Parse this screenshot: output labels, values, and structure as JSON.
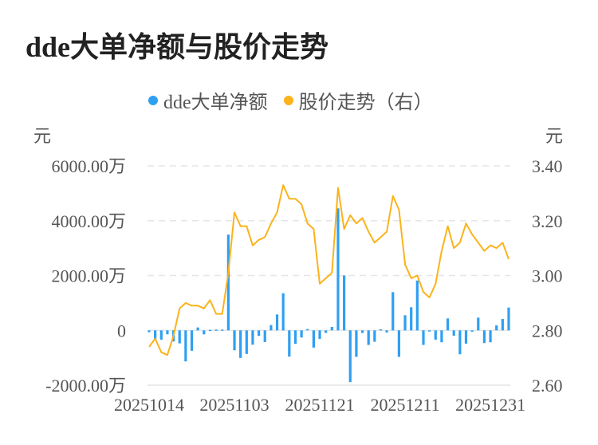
{
  "title": "dde大单净额与股价走势",
  "colors": {
    "bar": "#2f9ff2",
    "line": "#fbb31c",
    "grid": "#e6e6e6"
  },
  "chart_data": {
    "type": "bar+line",
    "title": "dde大单净额与股价走势",
    "legend": {
      "position": "top",
      "entries": [
        "dde大单净额",
        "股价走势（右）"
      ]
    },
    "y_left": {
      "unit": "元",
      "ticks": [
        "6000.00万",
        "4000.00万",
        "2000.00万",
        "0",
        "-2000.00万"
      ],
      "tick_values": [
        6000,
        4000,
        2000,
        0,
        -2000
      ],
      "range": [
        -2000,
        6000
      ],
      "value_unit": "万元"
    },
    "y_right": {
      "unit": "元",
      "ticks": [
        "3.40",
        "3.20",
        "3.00",
        "2.80",
        "2.60"
      ],
      "tick_values": [
        3.4,
        3.2,
        3.0,
        2.8,
        2.6
      ],
      "range": [
        2.6,
        3.4
      ]
    },
    "x_ticks": [
      {
        "index": 0,
        "label": "20251014"
      },
      {
        "index": 14,
        "label": "20251103"
      },
      {
        "index": 28,
        "label": "20251121"
      },
      {
        "index": 42,
        "label": "20251211"
      },
      {
        "index": 56,
        "label": "20251231"
      }
    ],
    "grid": true,
    "series": [
      {
        "name": "dde大单净额",
        "type": "bar",
        "axis": "left",
        "values": [
          -68,
          -358,
          -339,
          -145,
          -406,
          -474,
          -1132,
          -745,
          106,
          -145,
          19,
          29,
          29,
          3493,
          -726,
          -1006,
          -861,
          -522,
          -203,
          -426,
          194,
          580,
          1354,
          -958,
          -493,
          -261,
          48,
          -629,
          -310,
          -92,
          126,
          4450,
          2003,
          -1887,
          -968,
          -97,
          -532,
          -416,
          39,
          -77,
          1393,
          -968,
          551,
          842,
          1819,
          -532,
          -5,
          -339,
          -435,
          435,
          -194,
          -871,
          -484,
          -48,
          464,
          -464,
          -435,
          184,
          416,
          832
        ]
      },
      {
        "name": "股价走势（右）",
        "type": "line",
        "axis": "right",
        "values": [
          2.74,
          2.77,
          2.72,
          2.71,
          2.78,
          2.88,
          2.9,
          2.89,
          2.89,
          2.88,
          2.91,
          2.86,
          2.86,
          3.01,
          3.23,
          3.18,
          3.18,
          3.11,
          3.13,
          3.14,
          3.19,
          3.23,
          3.33,
          3.28,
          3.28,
          3.26,
          3.19,
          3.17,
          2.97,
          2.99,
          3.01,
          3.32,
          3.17,
          3.22,
          3.19,
          3.21,
          3.16,
          3.12,
          3.14,
          3.16,
          3.29,
          3.24,
          3.04,
          2.99,
          3.0,
          2.94,
          2.92,
          2.97,
          3.09,
          3.18,
          3.1,
          3.12,
          3.19,
          3.15,
          3.12,
          3.09,
          3.11,
          3.1,
          3.12,
          3.06
        ]
      }
    ]
  }
}
